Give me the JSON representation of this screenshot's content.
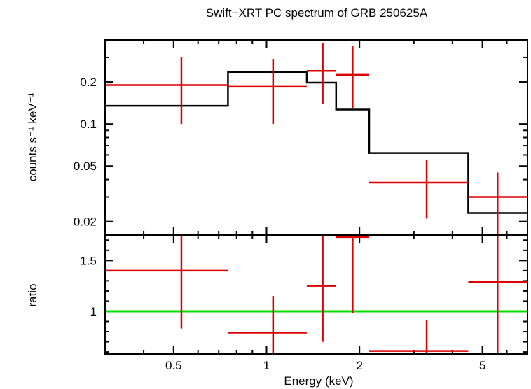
{
  "chart_data": {
    "type": "step-spectrum",
    "title": "Swift−XRT PC spectrum of GRB 250625A",
    "xlabel": "Energy (keV)",
    "xscale": "log",
    "xlim": [
      0.3,
      7.0
    ],
    "xticks": [
      {
        "value": 0.5,
        "label": "0.5"
      },
      {
        "value": 1,
        "label": "1"
      },
      {
        "value": 2,
        "label": "2"
      },
      {
        "value": 5,
        "label": "5"
      }
    ],
    "top_panel": {
      "ylabel": "counts s⁻¹ keV⁻¹",
      "yscale": "log",
      "ylim": [
        0.016,
        0.4
      ],
      "yticks": [
        {
          "value": 0.02,
          "label": "0.02"
        },
        {
          "value": 0.05,
          "label": "0.05"
        },
        {
          "value": 0.1,
          "label": "0.1"
        },
        {
          "value": 0.2,
          "label": "0.2"
        }
      ],
      "data_color": "#dd0000",
      "model_color": "#000000",
      "data": [
        {
          "xlo": 0.3,
          "xhi": 0.75,
          "x": 0.53,
          "y": 0.19,
          "ylo": 0.1,
          "yhi": 0.3
        },
        {
          "xlo": 0.75,
          "xhi": 1.35,
          "x": 1.05,
          "y": 0.185,
          "ylo": 0.1,
          "yhi": 0.29
        },
        {
          "xlo": 1.35,
          "xhi": 1.68,
          "x": 1.52,
          "y": 0.24,
          "ylo": 0.14,
          "yhi": 0.38
        },
        {
          "xlo": 1.68,
          "xhi": 2.15,
          "x": 1.9,
          "y": 0.225,
          "ylo": 0.13,
          "yhi": 0.36
        },
        {
          "xlo": 2.15,
          "xhi": 4.5,
          "x": 3.3,
          "y": 0.038,
          "ylo": 0.021,
          "yhi": 0.055
        },
        {
          "xlo": 4.5,
          "xhi": 7.0,
          "x": 5.6,
          "y": 0.03,
          "ylo": 0.007,
          "yhi": 0.045
        }
      ],
      "model": [
        {
          "xlo": 0.3,
          "xhi": 0.75,
          "y": 0.135
        },
        {
          "xlo": 0.75,
          "xhi": 1.35,
          "y": 0.235
        },
        {
          "xlo": 1.35,
          "xhi": 1.68,
          "y": 0.198
        },
        {
          "xlo": 1.68,
          "xhi": 2.15,
          "y": 0.127
        },
        {
          "xlo": 2.15,
          "xhi": 4.5,
          "y": 0.062
        },
        {
          "xlo": 4.5,
          "xhi": 7.0,
          "y": 0.023
        }
      ]
    },
    "bottom_panel": {
      "ylabel": "ratio",
      "yscale": "linear",
      "ylim": [
        0.58,
        1.75
      ],
      "yticks": [
        {
          "value": 1,
          "label": "1"
        },
        {
          "value": 1.5,
          "label": "1.5"
        }
      ],
      "reference_value": 1,
      "reference_color": "#00e000",
      "data_color": "#dd0000",
      "data": [
        {
          "xlo": 0.3,
          "xhi": 0.75,
          "x": 0.53,
          "y": 1.4,
          "ylo": 0.83,
          "yhi": 1.75
        },
        {
          "xlo": 0.75,
          "xhi": 1.35,
          "x": 1.05,
          "y": 0.79,
          "ylo": 0.58,
          "yhi": 1.15
        },
        {
          "xlo": 1.35,
          "xhi": 1.68,
          "x": 1.52,
          "y": 1.25,
          "ylo": 0.7,
          "yhi": 1.75
        },
        {
          "xlo": 1.68,
          "xhi": 2.15,
          "x": 1.9,
          "y": 1.73,
          "ylo": 0.98,
          "yhi": 1.75
        },
        {
          "xlo": 2.15,
          "xhi": 4.5,
          "x": 3.3,
          "y": 0.61,
          "ylo": 0.58,
          "yhi": 0.91
        },
        {
          "xlo": 4.5,
          "xhi": 7.0,
          "x": 5.6,
          "y": 1.29,
          "ylo": 0.58,
          "yhi": 1.75
        }
      ]
    }
  }
}
